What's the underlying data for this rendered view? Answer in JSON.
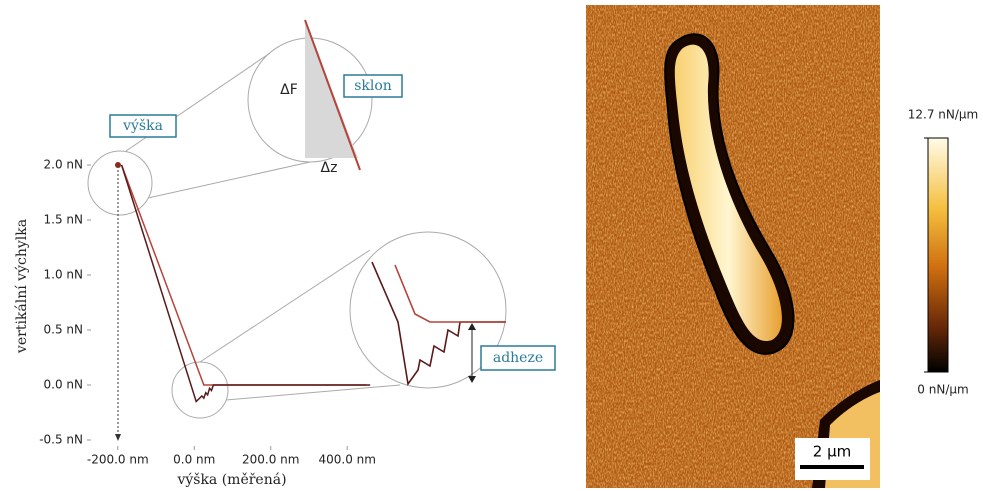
{
  "chart_data": [
    {
      "type": "line",
      "y_label": "vertikální výchylka",
      "x_label": "výška (měřená)",
      "xlim": [
        -270,
        470
      ],
      "ylim": [
        -0.5,
        2.3
      ],
      "xticks": [
        {
          "value": -200,
          "label": "-200.0 nm"
        },
        {
          "value": 0,
          "label": "0.0 nm"
        },
        {
          "value": 200,
          "label": "200.0 nm"
        },
        {
          "value": 400,
          "label": "400.0 nm"
        }
      ],
      "yticks": [
        {
          "value": -0.5,
          "label": "-0.5 nN"
        },
        {
          "value": 0,
          "label": "0.0 nN"
        },
        {
          "value": 0.5,
          "label": "0.5 nN"
        },
        {
          "value": 1,
          "label": "1.0 nN"
        },
        {
          "value": 1.5,
          "label": "1.5 nN"
        },
        {
          "value": 2,
          "label": "2.0 nN"
        }
      ],
      "series": [
        {
          "color": "#b5443a",
          "x": [
            -190,
            25,
            50,
            450
          ],
          "values": [
            2.0,
            0.0,
            0.0,
            0.0
          ]
        },
        {
          "color": "#5a1a1a",
          "x": [
            -190,
            5,
            20,
            25,
            30,
            35,
            40,
            45,
            50,
            460
          ],
          "values": [
            2.0,
            -0.15,
            -0.1,
            -0.12,
            -0.07,
            -0.09,
            -0.03,
            -0.05,
            0.0,
            0.0
          ]
        }
      ],
      "annotations": [
        {
          "text": "výška"
        },
        {
          "text": "sklon"
        },
        {
          "text": "ΔF"
        },
        {
          "text": "Δz"
        },
        {
          "text": "adheze"
        }
      ]
    },
    {
      "type": "heatmap",
      "clim": [
        0,
        12.7
      ],
      "colorbar_ticks": [
        {
          "value": 12.7,
          "label": "12.7 nN/µm"
        },
        {
          "value": 0,
          "label": "0 nN/µm"
        }
      ],
      "scale_bar": "2 µm"
    }
  ]
}
